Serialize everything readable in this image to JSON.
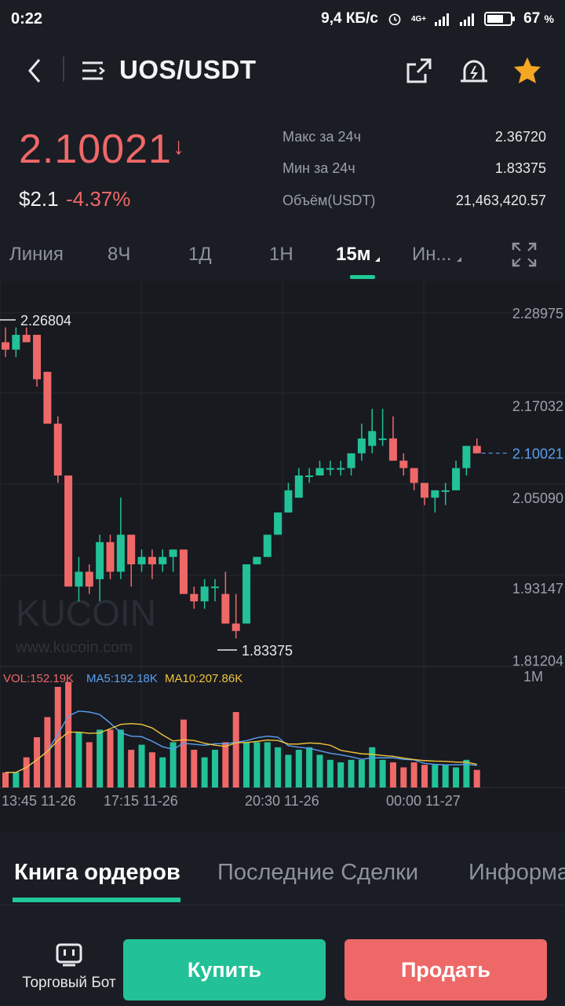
{
  "status_bar": {
    "time": "0:22",
    "network_speed": "9,4 КБ/с",
    "network_type": "4G+",
    "battery": "67",
    "battery_unit": "%"
  },
  "header": {
    "pair": "UOS/USDT"
  },
  "ticker": {
    "last_price": "2.10021",
    "usd_price": "$2.1",
    "change_pct": "-4.37%",
    "high_label": "Макс за 24ч",
    "high_value": "2.36720",
    "low_label": "Мин за 24ч",
    "low_value": "1.83375",
    "volume_label": "Объём(USDT)",
    "volume_value": "21,463,420.57"
  },
  "interval_tabs": [
    {
      "label": "Линия"
    },
    {
      "label": "8Ч"
    },
    {
      "label": "1Д"
    },
    {
      "label": "1Н"
    },
    {
      "label": "15м"
    },
    {
      "label": "Ин..."
    }
  ],
  "chart_data": {
    "type": "candlestick",
    "price_axis": [
      "2.28975",
      "2.17032",
      "2.05090",
      "1.93147",
      "1.81204"
    ],
    "current_price_label": "2.10021",
    "high_marker": "2.26804",
    "low_marker": "1.83375",
    "volume_axis_label": "1M",
    "indicators": {
      "vol": "VOL:152.19K",
      "ma5": "MA5:192.18K",
      "ma10": "MA10:207.86K"
    },
    "time_labels": [
      "13:45 11-26",
      "17:15 11-26",
      "20:30 11-26",
      "00:00 11-27"
    ],
    "watermark": "www.kucoin.com",
    "watermark_logo": "KUCOIN",
    "candles": [
      [
        2.25,
        2.27,
        2.23,
        2.24
      ],
      [
        2.24,
        2.27,
        2.23,
        2.26
      ],
      [
        2.26,
        2.27,
        2.25,
        2.25
      ],
      [
        2.26,
        2.26,
        2.19,
        2.2
      ],
      [
        2.21,
        2.21,
        2.14,
        2.14
      ],
      [
        2.14,
        2.15,
        2.06,
        2.07
      ],
      [
        2.07,
        2.07,
        1.92,
        1.92
      ],
      [
        1.92,
        1.96,
        1.9,
        1.94
      ],
      [
        1.94,
        1.95,
        1.91,
        1.92
      ],
      [
        1.93,
        1.99,
        1.9,
        1.98
      ],
      [
        1.98,
        1.99,
        1.93,
        1.94
      ],
      [
        1.94,
        2.04,
        1.93,
        1.99
      ],
      [
        1.99,
        1.99,
        1.92,
        1.95
      ],
      [
        1.95,
        1.97,
        1.94,
        1.96
      ],
      [
        1.96,
        1.97,
        1.93,
        1.95
      ],
      [
        1.95,
        1.97,
        1.94,
        1.96
      ],
      [
        1.96,
        1.97,
        1.94,
        1.97
      ],
      [
        1.97,
        1.97,
        1.91,
        1.91
      ],
      [
        1.91,
        1.92,
        1.89,
        1.9
      ],
      [
        1.9,
        1.93,
        1.89,
        1.92
      ],
      [
        1.92,
        1.93,
        1.9,
        1.92
      ],
      [
        1.91,
        1.94,
        1.87,
        1.87
      ],
      [
        1.87,
        1.91,
        1.85,
        1.86
      ],
      [
        1.87,
        1.95,
        1.87,
        1.95
      ],
      [
        1.95,
        1.96,
        1.95,
        1.96
      ],
      [
        1.96,
        1.99,
        1.96,
        1.99
      ],
      [
        1.99,
        2.02,
        1.99,
        2.02
      ],
      [
        2.02,
        2.06,
        2.02,
        2.05
      ],
      [
        2.04,
        2.08,
        2.04,
        2.07
      ],
      [
        2.07,
        2.08,
        2.06,
        2.07
      ],
      [
        2.07,
        2.09,
        2.07,
        2.08
      ],
      [
        2.08,
        2.09,
        2.07,
        2.08
      ],
      [
        2.08,
        2.09,
        2.07,
        2.08
      ],
      [
        2.08,
        2.1,
        2.07,
        2.1
      ],
      [
        2.1,
        2.14,
        2.09,
        2.12
      ],
      [
        2.11,
        2.16,
        2.1,
        2.13
      ],
      [
        2.12,
        2.16,
        2.11,
        2.12
      ],
      [
        2.12,
        2.15,
        2.09,
        2.09
      ],
      [
        2.09,
        2.1,
        2.07,
        2.08
      ],
      [
        2.08,
        2.08,
        2.05,
        2.06
      ],
      [
        2.06,
        2.06,
        2.03,
        2.04
      ],
      [
        2.04,
        2.05,
        2.02,
        2.05
      ],
      [
        2.05,
        2.06,
        2.03,
        2.05
      ],
      [
        2.05,
        2.09,
        2.05,
        2.08
      ],
      [
        2.08,
        2.11,
        2.07,
        2.11
      ],
      [
        2.11,
        2.12,
        2.1,
        2.1
      ]
    ],
    "volumes": [
      60,
      60,
      120,
      200,
      280,
      400,
      420,
      220,
      180,
      230,
      230,
      230,
      150,
      170,
      140,
      120,
      180,
      270,
      150,
      120,
      150,
      180,
      300,
      180,
      180,
      180,
      160,
      130,
      150,
      160,
      130,
      110,
      100,
      110,
      110,
      160,
      110,
      100,
      80,
      100,
      90,
      90,
      90,
      80,
      110,
      70
    ]
  },
  "orderbook_tabs": [
    {
      "label": "Книга ордеров"
    },
    {
      "label": "Последние Сделки"
    },
    {
      "label": "Информа"
    }
  ],
  "bottom_bar": {
    "bot_label": "Торговый Бот",
    "buy_label": "Купить",
    "sell_label": "Продать"
  },
  "colors": {
    "up": "#22c197",
    "down": "#ef6868",
    "accent": "#20c997",
    "ma5": "#5aa0f0",
    "ma10": "#f0c43c",
    "star": "#f5a623"
  }
}
